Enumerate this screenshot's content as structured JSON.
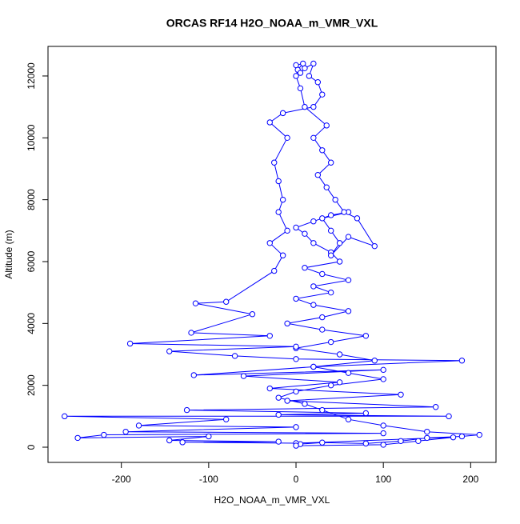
{
  "chart_data": {
    "type": "scatter",
    "title": "ORCAS RF14 H2O_NOAA_m_VMR_VXL",
    "xlabel": "H2O_NOAA_m_VMR_VXL",
    "ylabel": "Altitude (m)",
    "color": "#0000ff",
    "lines": true,
    "xlim": [
      -284,
      229
    ],
    "ylim": [
      -491,
      12956
    ],
    "xticks": [
      -200,
      -100,
      0,
      100,
      200
    ],
    "yticks": [
      0,
      2000,
      4000,
      6000,
      8000,
      10000,
      12000
    ],
    "x": [
      5,
      30,
      80,
      120,
      150,
      190,
      210,
      150,
      100,
      60,
      30,
      10,
      -20,
      0,
      40,
      100,
      60,
      20,
      90,
      50,
      0,
      40,
      80,
      30,
      -10,
      30,
      60,
      20,
      0,
      40,
      20,
      60,
      30,
      10,
      50,
      40,
      20,
      10,
      0,
      20,
      40,
      60,
      30,
      40,
      50,
      40,
      60,
      90,
      70,
      55,
      45,
      35,
      25,
      40,
      30,
      20,
      35,
      10,
      5,
      0,
      2,
      8,
      0,
      5,
      10,
      20,
      15,
      25,
      30,
      20,
      -15,
      -30,
      -10,
      -25,
      -20,
      -15,
      -20,
      -10,
      -30,
      -15,
      -25,
      -80,
      -115,
      -50,
      -120,
      -30,
      -190,
      0,
      -145,
      -70,
      0,
      190,
      20,
      -117,
      100,
      -60,
      50,
      -30,
      120,
      -10,
      160,
      -125,
      80,
      -20,
      175,
      -265,
      -80,
      -180,
      0,
      -195,
      100,
      -220,
      -250,
      -100,
      -145,
      -20,
      -130,
      0,
      180,
      140,
      100,
      0
    ],
    "values": [
      100,
      150,
      120,
      200,
      300,
      350,
      400,
      500,
      700,
      900,
      1200,
      1400,
      1600,
      1800,
      2000,
      2200,
      2400,
      2600,
      2800,
      3000,
      3200,
      3400,
      3600,
      3800,
      4000,
      4200,
      4400,
      4600,
      4800,
      5000,
      5200,
      5400,
      5600,
      5800,
      6000,
      6300,
      6600,
      6900,
      7100,
      7300,
      7500,
      7600,
      7400,
      7000,
      6600,
      6200,
      6800,
      6500,
      7400,
      7600,
      8000,
      8400,
      8800,
      9200,
      9600,
      10000,
      10400,
      11000,
      11600,
      12000,
      12200,
      12400,
      12350,
      12100,
      12250,
      12400,
      12000,
      11800,
      11400,
      11000,
      10800,
      10500,
      10000,
      9200,
      8600,
      8000,
      7600,
      7000,
      6600,
      6200,
      5700,
      4700,
      4650,
      4300,
      3700,
      3600,
      3350,
      3250,
      3100,
      2950,
      2850,
      2800,
      2600,
      2330,
      2500,
      2300,
      2100,
      1900,
      1700,
      1500,
      1300,
      1200,
      1100,
      1050,
      1000,
      1000,
      900,
      700,
      650,
      500,
      450,
      400,
      300,
      350,
      220,
      180,
      160,
      130,
      320,
      200,
      80,
      50
    ]
  }
}
